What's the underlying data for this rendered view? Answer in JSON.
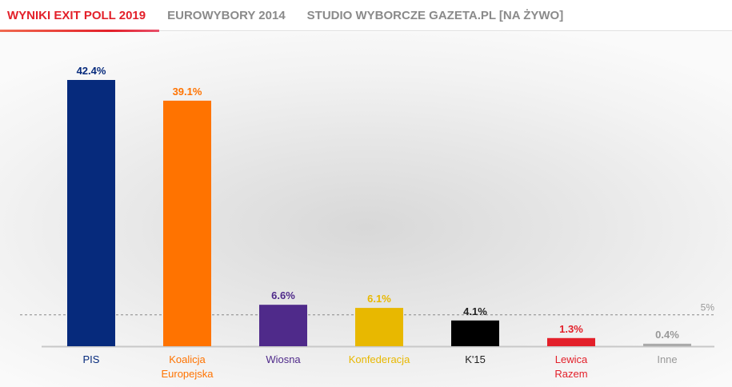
{
  "tabs": [
    "WYNIKI EXIT POLL 2019",
    "EUROWYBORY 2014",
    "STUDIO WYBORCZE GAZETA.PL [NA ŻYWO]"
  ],
  "chart_data": {
    "type": "bar",
    "categories": [
      [
        "PIS"
      ],
      [
        "Koalicja",
        "Europejska"
      ],
      [
        "Wiosna"
      ],
      [
        "Konfederacja"
      ],
      [
        "K'15"
      ],
      [
        "Lewica",
        "Razem"
      ],
      [
        "Inne"
      ]
    ],
    "values": [
      42.4,
      39.1,
      6.6,
      6.1,
      4.1,
      1.3,
      0.4
    ],
    "value_labels": [
      "42.4%",
      "39.1%",
      "6.6%",
      "6.1%",
      "4.1%",
      "1.3%",
      "0.4%"
    ],
    "colors": [
      "#062a7c",
      "#ff7300",
      "#4f2a8a",
      "#e8b800",
      "#000000",
      "#e3202a",
      "#aaaaaa"
    ],
    "label_colors": [
      "#062a7c",
      "#ff7300",
      "#4f2a8a",
      "#e8b800",
      "#222222",
      "#e3202a",
      "#999999"
    ],
    "threshold": 5,
    "threshold_label": "5%",
    "ylim": [
      0,
      42.4
    ]
  }
}
